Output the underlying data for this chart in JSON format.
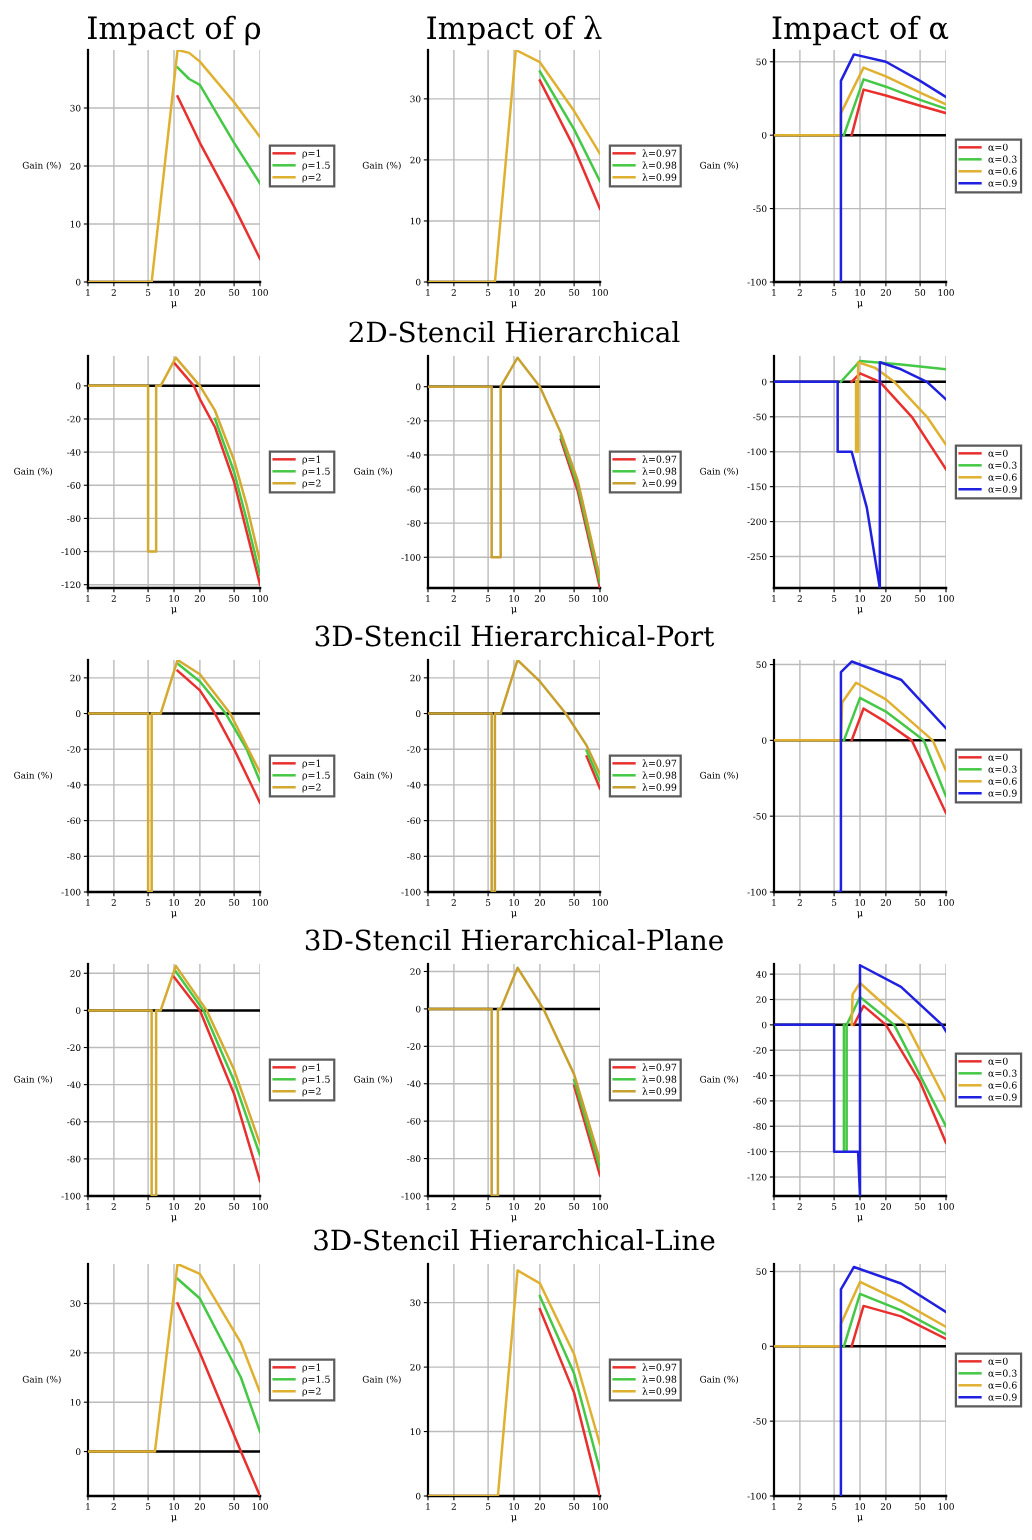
{
  "chart_data": [
    {
      "type": "line",
      "title": "Impact of ρ",
      "xlabel": "μ",
      "ylabel": "Gain (%)",
      "log": "x",
      "xlim": [
        1,
        100
      ],
      "xticks": [
        1,
        2,
        5,
        10,
        20,
        50,
        100
      ],
      "ylim": [
        0,
        40
      ],
      "yticks": [
        0,
        10,
        20,
        30
      ],
      "grid": true,
      "legend": "right",
      "series": [
        {
          "name": "ρ=1",
          "color": "#e8302e",
          "x": [
            11,
            20,
            50,
            100
          ],
          "values": [
            32,
            24,
            13,
            4
          ]
        },
        {
          "name": "ρ=1.5",
          "color": "#45c845",
          "x": [
            11,
            15,
            20,
            50,
            100
          ],
          "values": [
            37,
            35,
            34,
            24,
            17
          ]
        },
        {
          "name": "ρ=2",
          "color": "#e0b030",
          "x": [
            1,
            5.5,
            11,
            15,
            20,
            50,
            100
          ],
          "values": [
            0,
            0,
            40,
            39.5,
            38,
            31,
            25
          ]
        }
      ]
    },
    {
      "type": "line",
      "title": "Impact of λ",
      "xlabel": "μ",
      "ylabel": "Gain (%)",
      "log": "x",
      "xlim": [
        1,
        100
      ],
      "xticks": [
        1,
        2,
        5,
        10,
        20,
        50,
        100
      ],
      "ylim": [
        0,
        38
      ],
      "yticks": [
        0,
        10,
        20,
        30
      ],
      "grid": true,
      "legend": "right",
      "series": [
        {
          "name": "λ=0.97",
          "color": "#e8302e",
          "x": [
            20,
            50,
            100
          ],
          "values": [
            33,
            22,
            12
          ]
        },
        {
          "name": "λ=0.98",
          "color": "#45c845",
          "x": [
            20,
            50,
            100
          ],
          "values": [
            34.5,
            25,
            16.5
          ]
        },
        {
          "name": "λ=0.99",
          "color": "#e0b030",
          "x": [
            1,
            6,
            10.5,
            20,
            50,
            100
          ],
          "values": [
            0,
            0,
            38,
            36,
            28,
            21
          ]
        }
      ]
    },
    {
      "type": "line",
      "title": "Impact of α",
      "xlabel": "μ",
      "ylabel": "Gain (%)",
      "log": "x",
      "xlim": [
        1,
        100
      ],
      "xticks": [
        1,
        2,
        5,
        10,
        20,
        50,
        100
      ],
      "ylim": [
        -100,
        58
      ],
      "yticks": [
        -100,
        -50,
        0,
        50
      ],
      "grid": true,
      "legend": "right",
      "series": [
        {
          "name": "α=0",
          "color": "#e8302e",
          "x": [
            8,
            11,
            20,
            50,
            100
          ],
          "values": [
            0,
            31,
            27,
            20,
            15
          ]
        },
        {
          "name": "α=0.3",
          "color": "#45c845",
          "x": [
            6.5,
            11,
            20,
            50,
            100
          ],
          "values": [
            0,
            38,
            33,
            24,
            18
          ]
        },
        {
          "name": "α=0.6",
          "color": "#e0b030",
          "x": [
            1,
            6,
            6,
            11,
            20,
            50,
            100
          ],
          "values": [
            0,
            0,
            15,
            46,
            40,
            29,
            21
          ]
        },
        {
          "name": "α=0.9",
          "color": "#2020e0",
          "x": [
            6,
            6,
            8.5,
            20,
            50,
            100
          ],
          "values": [
            -100,
            37,
            55,
            50,
            37,
            26
          ]
        }
      ]
    },
    {
      "type": "line",
      "xlabel": "μ",
      "ylabel": "Gain (%)",
      "log": "x",
      "xlim": [
        1,
        100
      ],
      "xticks": [
        1,
        2,
        5,
        10,
        20,
        50,
        100
      ],
      "ylim": [
        -122,
        18
      ],
      "yticks": [
        -120,
        -100,
        -80,
        -60,
        -40,
        -20,
        0
      ],
      "grid": true,
      "legend": "right",
      "series": [
        {
          "name": "ρ=1",
          "color": "#e8302e",
          "x": [
            10,
            17,
            20,
            30,
            50,
            70,
            100
          ],
          "values": [
            14,
            0,
            -8,
            -25,
            -58,
            -88,
            -120
          ]
        },
        {
          "name": "ρ=1.5",
          "color": "#45c845",
          "x": [
            30,
            50,
            70,
            100
          ],
          "values": [
            -20,
            -52,
            -81,
            -114
          ]
        },
        {
          "name": "ρ=2",
          "color": "#d4aa30",
          "x": [
            1,
            5,
            5,
            6.2,
            6.2,
            7,
            10.5,
            20,
            30,
            50,
            70,
            100
          ],
          "values": [
            0,
            0,
            -100,
            -100,
            0,
            0,
            17,
            0,
            -15,
            -45,
            -72,
            -106
          ]
        }
      ]
    },
    {
      "type": "line",
      "title": "2D-Stencil Hierarchical",
      "xlabel": "μ",
      "ylabel": "Gain (%)",
      "log": "x",
      "xlim": [
        1,
        100
      ],
      "xticks": [
        1,
        2,
        5,
        10,
        20,
        50,
        100
      ],
      "ylim": [
        -118,
        18
      ],
      "yticks": [
        -100,
        -80,
        -60,
        -40,
        -20,
        0
      ],
      "grid": true,
      "legend": "right",
      "series": [
        {
          "name": "λ=0.97",
          "color": "#e8302e",
          "x": [
            35,
            55,
            100
          ],
          "values": [
            -31,
            -61,
            -118
          ]
        },
        {
          "name": "λ=0.98",
          "color": "#45c845",
          "x": [
            35,
            55,
            100
          ],
          "values": [
            -29,
            -58,
            -115
          ]
        },
        {
          "name": "λ=0.99",
          "color": "#c8a030",
          "x": [
            1,
            5.5,
            5.5,
            7,
            7,
            11,
            20,
            35,
            55,
            100
          ],
          "values": [
            0,
            0,
            -100,
            -100,
            0,
            17,
            0,
            -27,
            -55,
            -112
          ]
        }
      ]
    },
    {
      "type": "line",
      "xlabel": "μ",
      "ylabel": "Gain (%)",
      "log": "x",
      "xlim": [
        1,
        100
      ],
      "xticks": [
        1,
        2,
        5,
        10,
        20,
        50,
        100
      ],
      "ylim": [
        -295,
        37
      ],
      "yticks": [
        -250,
        -200,
        -150,
        -100,
        -50,
        0
      ],
      "grid": true,
      "legend": "right",
      "series": [
        {
          "name": "α=0",
          "color": "#e8302e",
          "x": [
            8,
            10,
            17,
            40,
            100
          ],
          "values": [
            0,
            12,
            0,
            -50,
            -125
          ]
        },
        {
          "name": "α=0.3",
          "color": "#45c845",
          "x": [
            6,
            10,
            30,
            100
          ],
          "values": [
            0,
            30,
            25,
            18
          ]
        },
        {
          "name": "α=0.6",
          "color": "#e0b030",
          "x": [
            9,
            9,
            9.5,
            9.5,
            15,
            25,
            60,
            100
          ],
          "values": [
            0,
            -100,
            -100,
            28,
            20,
            0,
            -50,
            -90
          ]
        },
        {
          "name": "α=0.9",
          "color": "#2020e0",
          "x": [
            1,
            5.5,
            5.5,
            8,
            12,
            17,
            17,
            30,
            60,
            100
          ],
          "values": [
            0,
            0,
            -100,
            -100,
            -180,
            -295,
            28,
            18,
            0,
            -25
          ]
        }
      ]
    },
    {
      "type": "line",
      "xlabel": "μ",
      "ylabel": "Gain (%)",
      "log": "x",
      "xlim": [
        1,
        100
      ],
      "xticks": [
        1,
        2,
        5,
        10,
        20,
        50,
        100
      ],
      "ylim": [
        -100,
        30
      ],
      "yticks": [
        -100,
        -80,
        -60,
        -40,
        -20,
        0,
        20
      ],
      "grid": true,
      "legend": "right",
      "series": [
        {
          "name": "ρ=1",
          "color": "#e8302e",
          "x": [
            11,
            20,
            30,
            50,
            100
          ],
          "values": [
            24,
            13,
            0,
            -20,
            -50
          ]
        },
        {
          "name": "ρ=1.5",
          "color": "#45c845",
          "x": [
            11,
            20,
            40,
            70,
            100
          ],
          "values": [
            28,
            18,
            0,
            -20,
            -38
          ]
        },
        {
          "name": "ρ=2",
          "color": "#d4aa30",
          "x": [
            1,
            5,
            5,
            5.5,
            5.5,
            7,
            11,
            20,
            45,
            100
          ],
          "values": [
            0,
            0,
            -100,
            -100,
            0,
            0,
            30,
            22,
            0,
            -33
          ]
        }
      ]
    },
    {
      "type": "line",
      "title": "3D-Stencil Hierarchical-Port",
      "xlabel": "μ",
      "ylabel": "Gain (%)",
      "log": "x",
      "xlim": [
        1,
        100
      ],
      "xticks": [
        1,
        2,
        5,
        10,
        20,
        50,
        100
      ],
      "ylim": [
        -100,
        30
      ],
      "yticks": [
        -100,
        -80,
        -60,
        -40,
        -20,
        0,
        20
      ],
      "grid": true,
      "legend": "right",
      "series": [
        {
          "name": "λ=0.97",
          "color": "#e8302e",
          "x": [
            70,
            100
          ],
          "values": [
            -24,
            -42
          ]
        },
        {
          "name": "λ=0.98",
          "color": "#45c845",
          "x": [
            70,
            100
          ],
          "values": [
            -21,
            -38
          ]
        },
        {
          "name": "λ=0.99",
          "color": "#c8a030",
          "x": [
            1,
            5.5,
            5.5,
            6,
            6,
            7,
            11,
            20,
            40,
            70,
            100
          ],
          "values": [
            0,
            0,
            -100,
            -100,
            0,
            0,
            30,
            18,
            0,
            -18,
            -34
          ]
        }
      ]
    },
    {
      "type": "line",
      "xlabel": "μ",
      "ylabel": "Gain (%)",
      "log": "x",
      "xlim": [
        1,
        100
      ],
      "xticks": [
        1,
        2,
        5,
        10,
        20,
        50,
        100
      ],
      "ylim": [
        -100,
        53
      ],
      "yticks": [
        -100,
        -50,
        0,
        50
      ],
      "grid": true,
      "legend": "right",
      "series": [
        {
          "name": "α=0",
          "color": "#e8302e",
          "x": [
            8,
            11,
            20,
            40,
            100
          ],
          "values": [
            0,
            21,
            12,
            0,
            -48
          ]
        },
        {
          "name": "α=0.3",
          "color": "#45c845",
          "x": [
            6.5,
            10,
            20,
            55,
            100
          ],
          "values": [
            0,
            28,
            19,
            0,
            -37
          ]
        },
        {
          "name": "α=0.6",
          "color": "#e0b030",
          "x": [
            1,
            6,
            6.2,
            9,
            20,
            70,
            100
          ],
          "values": [
            0,
            0,
            25,
            38,
            27,
            0,
            -20
          ]
        },
        {
          "name": "α=0.9",
          "color": "#2020e0",
          "x": [
            5.5,
            6,
            6,
            8,
            30,
            100
          ],
          "values": [
            -100,
            -100,
            45,
            52,
            40,
            8
          ]
        }
      ]
    },
    {
      "type": "line",
      "xlabel": "μ",
      "ylabel": "Gain (%)",
      "log": "x",
      "xlim": [
        1,
        100
      ],
      "xticks": [
        1,
        2,
        5,
        10,
        20,
        50,
        100
      ],
      "ylim": [
        -100,
        25
      ],
      "yticks": [
        -100,
        -80,
        -60,
        -40,
        -20,
        0,
        20
      ],
      "grid": true,
      "legend": "right",
      "series": [
        {
          "name": "ρ=1",
          "color": "#e8302e",
          "x": [
            10,
            20,
            50,
            100
          ],
          "values": [
            18,
            0,
            -45,
            -92
          ]
        },
        {
          "name": "ρ=1.5",
          "color": "#45c845",
          "x": [
            10.5,
            22,
            50,
            100
          ],
          "values": [
            21,
            0,
            -38,
            -78
          ]
        },
        {
          "name": "ρ=2",
          "color": "#d4aa30",
          "x": [
            1,
            5.5,
            5.5,
            6.2,
            6.2,
            7,
            10.5,
            24,
            50,
            100
          ],
          "values": [
            0,
            0,
            -100,
            -100,
            0,
            0,
            24,
            0,
            -32,
            -72
          ]
        }
      ]
    },
    {
      "type": "line",
      "title": "3D-Stencil Hierarchical-Plane",
      "xlabel": "μ",
      "ylabel": "Gain (%)",
      "log": "x",
      "xlim": [
        1,
        100
      ],
      "xticks": [
        1,
        2,
        5,
        10,
        20,
        50,
        100
      ],
      "ylim": [
        -100,
        24
      ],
      "yticks": [
        -100,
        -80,
        -60,
        -40,
        -20,
        0,
        20
      ],
      "grid": true,
      "legend": "right",
      "series": [
        {
          "name": "λ=0.97",
          "color": "#e8302e",
          "x": [
            50,
            100
          ],
          "values": [
            -41,
            -89
          ]
        },
        {
          "name": "λ=0.98",
          "color": "#45c845",
          "x": [
            50,
            100
          ],
          "values": [
            -38,
            -85
          ]
        },
        {
          "name": "λ=0.99",
          "color": "#c8a030",
          "x": [
            1,
            5.5,
            5.5,
            6.5,
            6.5,
            7,
            11,
            22,
            50,
            100
          ],
          "values": [
            0,
            0,
            -100,
            -100,
            0,
            0,
            22,
            0,
            -35,
            -81
          ]
        }
      ]
    },
    {
      "type": "line",
      "xlabel": "μ",
      "ylabel": "Gain (%)",
      "log": "x",
      "xlim": [
        1,
        100
      ],
      "xticks": [
        1,
        2,
        5,
        10,
        20,
        50,
        100
      ],
      "ylim": [
        -135,
        48
      ],
      "yticks": [
        -120,
        -100,
        -80,
        -60,
        -40,
        -20,
        0,
        20,
        40
      ],
      "grid": true,
      "legend": "right",
      "series": [
        {
          "name": "α=0",
          "color": "#e8302e",
          "x": [
            8.5,
            11,
            20,
            50,
            100
          ],
          "values": [
            0,
            15,
            0,
            -45,
            -93
          ]
        },
        {
          "name": "α=0.3",
          "color": "#45c845",
          "x": [
            6.5,
            6.5,
            7,
            7,
            10,
            25,
            100
          ],
          "values": [
            0,
            -100,
            -100,
            0,
            22,
            0,
            -80
          ]
        },
        {
          "name": "α=0.6",
          "color": "#e0b030",
          "x": [
            8,
            8.2,
            10,
            35,
            100
          ],
          "values": [
            0,
            24,
            33,
            0,
            -60
          ]
        },
        {
          "name": "α=0.9",
          "color": "#2020e0",
          "x": [
            1,
            5,
            5,
            9.5,
            10,
            10,
            30,
            90,
            100
          ],
          "values": [
            0,
            0,
            -100,
            -100,
            -135,
            47,
            30,
            0,
            -5
          ]
        }
      ]
    },
    {
      "type": "line",
      "xlabel": "μ",
      "ylabel": "Gain (%)",
      "log": "x",
      "xlim": [
        1,
        100
      ],
      "xticks": [
        1,
        2,
        5,
        10,
        20,
        50,
        100
      ],
      "ylim": [
        -9,
        38
      ],
      "yticks": [
        0,
        10,
        20,
        30
      ],
      "grid": true,
      "legend": "right",
      "series": [
        {
          "name": "ρ=1",
          "color": "#e8302e",
          "x": [
            11,
            20,
            60,
            100
          ],
          "values": [
            30,
            20,
            0,
            -9
          ]
        },
        {
          "name": "ρ=1.5",
          "color": "#45c845",
          "x": [
            11,
            20,
            60,
            100
          ],
          "values": [
            35,
            31,
            15,
            4
          ]
        },
        {
          "name": "ρ=2",
          "color": "#e0b030",
          "x": [
            1,
            6,
            11,
            20,
            60,
            100
          ],
          "values": [
            0,
            0,
            38,
            36,
            22,
            12
          ]
        }
      ]
    },
    {
      "type": "line",
      "title": "3D-Stencil Hierarchical-Line",
      "xlabel": "μ",
      "ylabel": "Gain (%)",
      "log": "x",
      "xlim": [
        1,
        100
      ],
      "xticks": [
        1,
        2,
        5,
        10,
        20,
        50,
        100
      ],
      "ylim": [
        0,
        36
      ],
      "yticks": [
        0,
        10,
        20,
        30
      ],
      "grid": true,
      "legend": "right",
      "series": [
        {
          "name": "λ=0.97",
          "color": "#e8302e",
          "x": [
            20,
            50,
            100
          ],
          "values": [
            29,
            16,
            0
          ]
        },
        {
          "name": "λ=0.98",
          "color": "#45c845",
          "x": [
            20,
            50,
            100
          ],
          "values": [
            31,
            19,
            4
          ]
        },
        {
          "name": "λ=0.99",
          "color": "#e0b030",
          "x": [
            1,
            6.5,
            11,
            20,
            50,
            100
          ],
          "values": [
            0,
            0,
            35,
            33,
            22,
            8
          ]
        }
      ]
    },
    {
      "type": "line",
      "xlabel": "μ",
      "ylabel": "Gain (%)",
      "log": "x",
      "xlim": [
        1,
        100
      ],
      "xticks": [
        1,
        2,
        5,
        10,
        20,
        50,
        100
      ],
      "ylim": [
        -100,
        55
      ],
      "yticks": [
        -100,
        -50,
        0,
        50
      ],
      "grid": true,
      "legend": "right",
      "series": [
        {
          "name": "α=0",
          "color": "#e8302e",
          "x": [
            8,
            11,
            30,
            100
          ],
          "values": [
            0,
            27,
            20,
            5
          ]
        },
        {
          "name": "α=0.3",
          "color": "#45c845",
          "x": [
            6.5,
            10,
            30,
            100
          ],
          "values": [
            0,
            35,
            24,
            8
          ]
        },
        {
          "name": "α=0.6",
          "color": "#e0b030",
          "x": [
            1,
            6,
            6,
            10,
            30,
            100
          ],
          "values": [
            0,
            0,
            15,
            43,
            30,
            13
          ]
        },
        {
          "name": "α=0.9",
          "color": "#2020e0",
          "x": [
            6,
            6,
            8.5,
            30,
            100
          ],
          "values": [
            -100,
            38,
            53,
            42,
            23
          ]
        }
      ]
    }
  ]
}
